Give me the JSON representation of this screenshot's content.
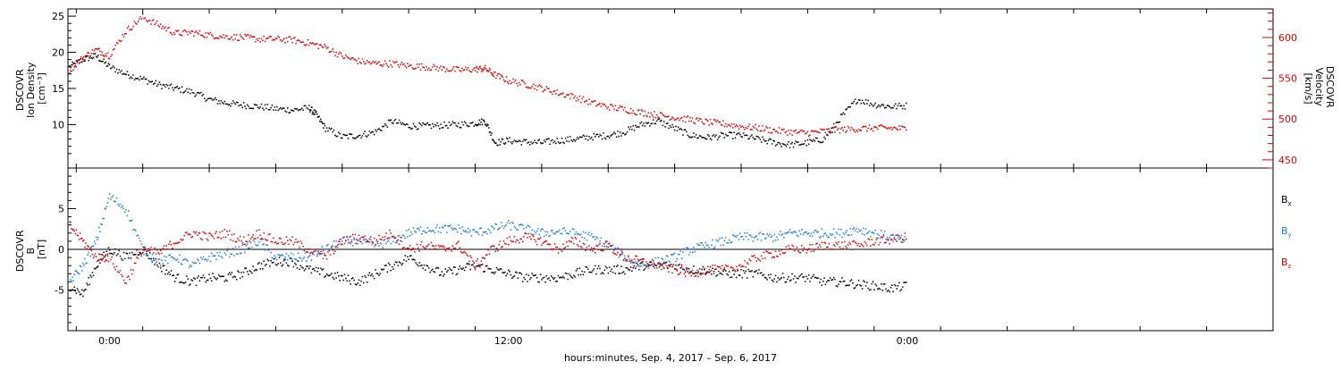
{
  "chart_data": [
    {
      "type": "scatter",
      "panel": "top",
      "y_left_label": [
        "DSCOVR",
        "Ion Density",
        "[cm⁻³]"
      ],
      "y_right_label": [
        "DSCOVR",
        "Velocity",
        "[km/s]"
      ],
      "x_tick_labels": [
        "0:00",
        "12:00",
        "0:00"
      ],
      "xlim_hours": [
        -1.25,
        35.0
      ],
      "ylim_left": [
        4,
        26
      ],
      "ylim_right": [
        440,
        635
      ],
      "left_ticks": [
        10,
        15,
        20,
        25
      ],
      "right_ticks": [
        450,
        500,
        550,
        600
      ],
      "series": [
        {
          "axis": "left",
          "color": "#000000",
          "x": [
            -1.2,
            -0.8,
            -0.4,
            0,
            0.5,
            1,
            1.5,
            2,
            2.5,
            3,
            3.5,
            4,
            4.5,
            5,
            5.5,
            6,
            6.2,
            6.5,
            7,
            7.5,
            8,
            8.5,
            9,
            9.5,
            10,
            10.5,
            11,
            11.3,
            11.6,
            12,
            12.5,
            13,
            13.5,
            14,
            14.5,
            15,
            15.5,
            16,
            16.5,
            17,
            17.5,
            18,
            18.5,
            19,
            19.5,
            20,
            20.5,
            21,
            21.5,
            22,
            22.5,
            23,
            23.5,
            24
          ],
          "y": [
            18,
            19,
            19.5,
            18,
            17,
            16.3,
            15.5,
            15,
            14.5,
            13.5,
            13,
            12.7,
            12.5,
            12.2,
            12,
            12.3,
            11.5,
            9.5,
            8.3,
            8.5,
            9,
            10.5,
            9.8,
            9.8,
            9.9,
            10,
            10.2,
            10.5,
            7.5,
            7.8,
            7.6,
            7.5,
            7.8,
            8,
            8.3,
            8.5,
            9,
            10,
            10.5,
            9.5,
            8.5,
            8.2,
            8.5,
            8.5,
            8,
            7.5,
            7.2,
            7.5,
            8,
            11,
            13.5,
            12.8,
            12.5,
            12.6
          ]
        },
        {
          "axis": "right",
          "color": "#dd0000",
          "x": [
            -1.2,
            -0.8,
            -0.4,
            0,
            0.5,
            1,
            1.5,
            2,
            2.5,
            3,
            3.5,
            4,
            4.5,
            5,
            5.5,
            6,
            6.5,
            7,
            7.5,
            8,
            8.5,
            9,
            9.5,
            10,
            10.5,
            11,
            11.3,
            11.6,
            12,
            12.5,
            13,
            13.5,
            14,
            14.5,
            15,
            15.5,
            16,
            16.5,
            17,
            17.5,
            18,
            18.5,
            19,
            19.5,
            20,
            20.5,
            21,
            21.5,
            22,
            22.5,
            23,
            23.5,
            24
          ],
          "y": [
            560,
            575,
            585,
            578,
            608,
            625,
            615,
            605,
            606,
            603,
            601,
            600,
            598,
            598,
            597,
            593,
            588,
            577,
            571,
            568,
            568,
            565,
            564,
            562,
            560,
            561,
            562,
            554,
            547,
            543,
            538,
            532,
            527,
            520,
            515,
            512,
            508,
            505,
            502,
            499,
            496,
            494,
            491,
            489,
            486,
            484,
            483,
            485,
            487,
            488,
            489,
            489,
            488
          ]
        }
      ]
    },
    {
      "type": "scatter",
      "panel": "bottom",
      "y_left_label": [
        "DSCOVR",
        "B",
        "[nT]"
      ],
      "x_tick_labels": [
        "0:00",
        "12:00",
        "0:00"
      ],
      "xlim_hours": [
        -1.25,
        35.0
      ],
      "ylim": [
        -10,
        10
      ],
      "left_ticks": [
        -5,
        0,
        5
      ],
      "legend": [
        {
          "name": "Bx",
          "base": "B",
          "sub": "x",
          "color": "#000000"
        },
        {
          "name": "By",
          "base": "B",
          "sub": "y",
          "color": "#1a7fdc"
        },
        {
          "name": "Bz",
          "base": "B",
          "sub": "z",
          "color": "#dd0000"
        }
      ],
      "legend_placement": "right-outside",
      "series": [
        {
          "name": "Bx",
          "color": "#000000",
          "x": [
            -1.2,
            -0.8,
            -0.4,
            0,
            0.5,
            1,
            1.5,
            2,
            2.5,
            3,
            3.5,
            4,
            4.5,
            5,
            5.5,
            6,
            6.5,
            7,
            7.5,
            8,
            8.5,
            9,
            9.5,
            10,
            10.5,
            11,
            11.5,
            12,
            12.5,
            13,
            13.5,
            14,
            14.5,
            15,
            15.5,
            16,
            16.5,
            17,
            17.5,
            18,
            18.5,
            19,
            19.5,
            20,
            20.5,
            21,
            21.5,
            22,
            22.5,
            23,
            23.5,
            24
          ],
          "y": [
            -4.5,
            -5.5,
            -2,
            0,
            -1,
            0,
            -2,
            -3.5,
            -4,
            -3.5,
            -3.5,
            -3,
            -2,
            -1.5,
            -1.5,
            -2.5,
            -3,
            -3.5,
            -4,
            -3,
            -2,
            -1,
            -2,
            -3,
            -2.5,
            -2,
            -2.5,
            -3,
            -3.5,
            -3.5,
            -3.5,
            -3,
            -2.5,
            -2.5,
            -2.5,
            -2,
            -2,
            -2,
            -2.5,
            -2.5,
            -3,
            -3,
            -3,
            -3.5,
            -3.5,
            -3.5,
            -4,
            -4,
            -4.3,
            -4.5,
            -4.8,
            -4.5
          ]
        },
        {
          "name": "By",
          "color": "#1a7fdc",
          "x": [
            -1.2,
            -0.8,
            -0.4,
            0,
            0.5,
            1,
            1.5,
            2,
            2.5,
            3,
            3.5,
            4,
            4.5,
            5,
            5.5,
            6,
            6.5,
            7,
            7.5,
            8,
            8.5,
            9,
            9.5,
            10,
            10.5,
            11,
            11.5,
            12,
            12.5,
            13,
            13.5,
            14,
            14.5,
            15,
            15.5,
            16,
            16.5,
            17,
            17.5,
            18,
            18.5,
            19,
            19.5,
            20,
            20.5,
            21,
            21.5,
            22,
            22.5,
            23,
            23.5,
            24
          ],
          "y": [
            -4,
            -2,
            1,
            6.5,
            5,
            0,
            -1.5,
            -1,
            -2,
            -1,
            -0.5,
            0,
            1,
            -1,
            -1,
            -1,
            0,
            1,
            1,
            0.5,
            1,
            2,
            2.5,
            2.5,
            2.5,
            2,
            2.5,
            3,
            2.5,
            2,
            2.2,
            2,
            1.5,
            0.5,
            -1,
            -2,
            -1.5,
            -1,
            0,
            0.5,
            1,
            1.5,
            1.5,
            1.5,
            2,
            2,
            2,
            2,
            2.5,
            2,
            1.5,
            1
          ]
        },
        {
          "name": "Bz",
          "color": "#dd0000",
          "x": [
            -1.2,
            -0.8,
            -0.4,
            0,
            0.5,
            1,
            1.5,
            2,
            2.5,
            3,
            3.5,
            4,
            4.5,
            5,
            5.5,
            6,
            6.5,
            7,
            7.5,
            8,
            8.5,
            9,
            9.5,
            10,
            10.5,
            11,
            11.5,
            12,
            12.5,
            13,
            13.5,
            14,
            14.5,
            15,
            15.5,
            16,
            16.5,
            17,
            17.5,
            18,
            18.5,
            19,
            19.5,
            20,
            20.5,
            21,
            21.5,
            22,
            22.5,
            23,
            23.5,
            24
          ],
          "y": [
            3,
            1,
            -1,
            -1,
            -4,
            0,
            -0.5,
            1,
            2,
            1.5,
            2,
            1,
            2,
            1,
            1,
            0,
            -1,
            1,
            1.5,
            1,
            2,
            0,
            0.5,
            0,
            0.5,
            -2,
            0,
            1,
            1.5,
            1,
            0,
            1,
            0,
            0.5,
            -1,
            -1.5,
            -2,
            -2.5,
            -3,
            -2.5,
            -2.5,
            -2,
            -1,
            -0.5,
            0,
            0,
            0.5,
            0.5,
            0.5,
            1,
            1.2,
            1.5
          ]
        }
      ]
    }
  ],
  "x_axis_title": "hours:minutes, Sep.  4, 2017 – Sep.  6, 2017"
}
